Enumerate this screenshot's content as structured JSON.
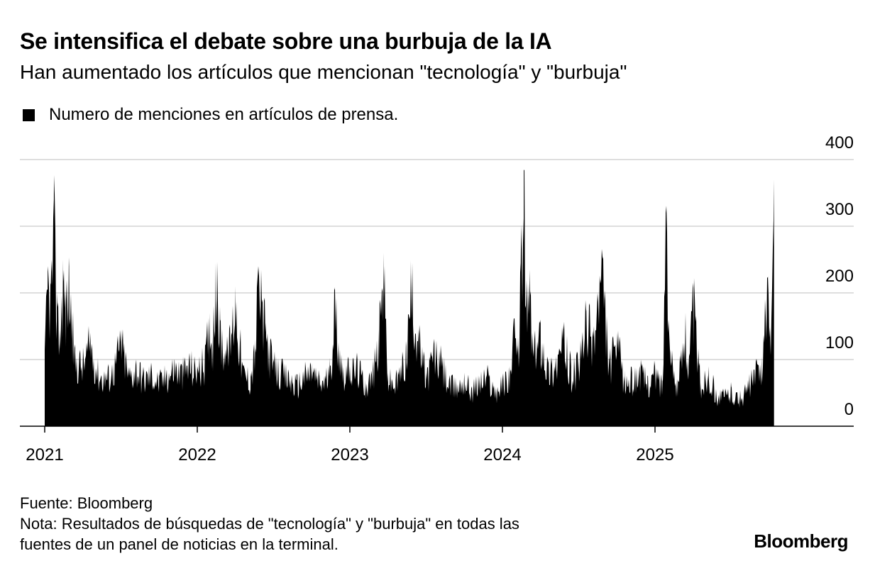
{
  "header": {
    "title": "Se intensifica el debate sobre una burbuja de la IA",
    "subtitle": "Han aumentado los artículos que mencionan \"tecnología\" y \"burbuja\""
  },
  "legend": {
    "label": "Numero de menciones en artículos de prensa.",
    "color": "#000000"
  },
  "footer": {
    "source": "Fuente: Bloomberg",
    "note_line1": "Nota: Resultados de búsquedas de \"tecnología\" y \"burbuja\" en todas las",
    "note_line2": "fuentes de un panel de noticias en la terminal."
  },
  "brand": "Bloomberg",
  "chart_data": {
    "type": "area",
    "title": "Se intensifica el debate sobre una burbuja de la IA",
    "subtitle": "Han aumentado los artículos que mencionan \"tecnología\" y \"burbuja\"",
    "series_name": "Numero de menciones en artículos de prensa.",
    "xlabel": "",
    "ylabel": "",
    "ylim": [
      0,
      400
    ],
    "yticks": [
      0,
      100,
      200,
      300,
      400
    ],
    "yaxis_side": "right",
    "x_domain": [
      2021.0,
      2026.0
    ],
    "xticks": [
      {
        "value": 2021,
        "label": "2021"
      },
      {
        "value": 2022,
        "label": "2022"
      },
      {
        "value": 2023,
        "label": "2023"
      },
      {
        "value": 2024,
        "label": "2024"
      },
      {
        "value": 2025,
        "label": "2025"
      }
    ],
    "grid": true,
    "color": "#000000",
    "x": [
      2021.0,
      2021.02,
      2021.04,
      2021.06,
      2021.08,
      2021.1,
      2021.12,
      2021.14,
      2021.16,
      2021.18,
      2021.2,
      2021.25,
      2021.3,
      2021.35,
      2021.4,
      2021.45,
      2021.5,
      2021.55,
      2021.6,
      2021.65,
      2021.7,
      2021.75,
      2021.8,
      2021.85,
      2021.9,
      2021.95,
      2022.0,
      2022.05,
      2022.08,
      2022.1,
      2022.12,
      2022.15,
      2022.2,
      2022.25,
      2022.3,
      2022.35,
      2022.38,
      2022.4,
      2022.45,
      2022.5,
      2022.55,
      2022.6,
      2022.65,
      2022.7,
      2022.75,
      2022.8,
      2022.83,
      2022.87,
      2022.9,
      2022.95,
      2023.0,
      2023.05,
      2023.1,
      2023.15,
      2023.19,
      2023.22,
      2023.25,
      2023.3,
      2023.37,
      2023.4,
      2023.45,
      2023.5,
      2023.55,
      2023.6,
      2023.65,
      2023.7,
      2023.75,
      2023.8,
      2023.85,
      2023.9,
      2023.95,
      2024.0,
      2024.05,
      2024.08,
      2024.1,
      2024.12,
      2024.14,
      2024.16,
      2024.18,
      2024.2,
      2024.25,
      2024.3,
      2024.35,
      2024.4,
      2024.45,
      2024.5,
      2024.55,
      2024.6,
      2024.65,
      2024.7,
      2024.75,
      2024.8,
      2024.85,
      2024.9,
      2024.95,
      2025.0,
      2025.05,
      2025.07,
      2025.1,
      2025.15,
      2025.2,
      2025.22,
      2025.25,
      2025.3,
      2025.35,
      2025.4,
      2025.45,
      2025.5,
      2025.55,
      2025.6,
      2025.65,
      2025.7,
      2025.74,
      2025.76,
      2025.78
    ],
    "values": [
      115,
      240,
      215,
      340,
      200,
      145,
      250,
      190,
      240,
      170,
      110,
      105,
      140,
      90,
      80,
      95,
      145,
      85,
      100,
      80,
      90,
      75,
      85,
      100,
      90,
      105,
      90,
      110,
      170,
      135,
      245,
      160,
      115,
      210,
      90,
      80,
      130,
      240,
      155,
      100,
      90,
      80,
      70,
      85,
      95,
      75,
      75,
      90,
      205,
      95,
      90,
      100,
      70,
      85,
      145,
      260,
      80,
      70,
      120,
      230,
      145,
      80,
      125,
      105,
      70,
      65,
      80,
      60,
      75,
      85,
      60,
      70,
      90,
      155,
      110,
      245,
      385,
      180,
      235,
      115,
      160,
      95,
      105,
      145,
      90,
      100,
      175,
      150,
      260,
      100,
      140,
      75,
      80,
      90,
      75,
      90,
      70,
      320,
      110,
      70,
      170,
      90,
      215,
      65,
      90,
      55,
      50,
      60,
      45,
      60,
      85,
      105,
      225,
      125,
      370
    ]
  }
}
